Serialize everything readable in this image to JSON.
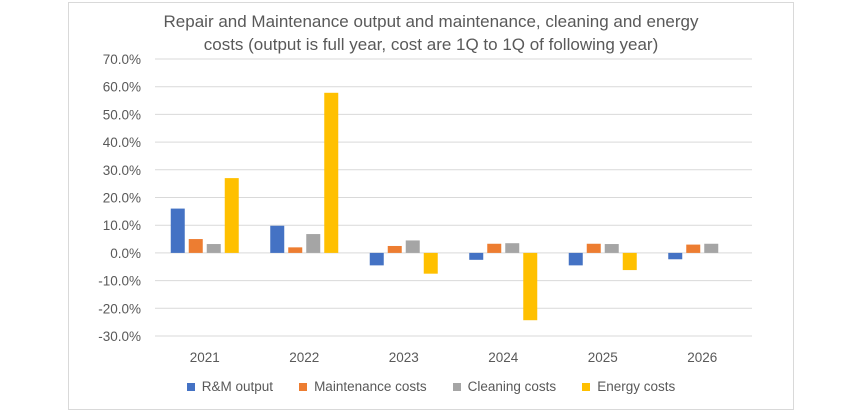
{
  "chart_data": {
    "type": "bar",
    "title_lines": [
      "Repair and Maintenance output and maintenance, cleaning and energy",
      "costs (output is full year, cost are 1Q to 1Q of following year)"
    ],
    "categories": [
      "2021",
      "2022",
      "2023",
      "2024",
      "2025",
      "2026"
    ],
    "series": [
      {
        "name": "R&M output",
        "color": "#4472C4",
        "values": [
          16.0,
          9.8,
          -4.5,
          -2.5,
          -4.5,
          -2.3
        ]
      },
      {
        "name": "Maintenance costs",
        "color": "#ED7D31",
        "values": [
          5.0,
          2.0,
          2.5,
          3.3,
          3.3,
          3.0
        ]
      },
      {
        "name": "Cleaning costs",
        "color": "#A5A5A5",
        "values": [
          3.2,
          6.8,
          4.5,
          3.5,
          3.2,
          3.3
        ]
      },
      {
        "name": "Energy costs",
        "color": "#FFC000",
        "values": [
          27.0,
          57.8,
          -7.5,
          -24.3,
          -6.2,
          0
        ]
      }
    ],
    "ylim": [
      -30,
      70
    ],
    "yticks": [
      "-30.0%",
      "-20.0%",
      "-10.0%",
      "0.0%",
      "10.0%",
      "20.0%",
      "30.0%",
      "40.0%",
      "50.0%",
      "60.0%",
      "70.0%"
    ],
    "xlabel": "",
    "ylabel": "",
    "grid": true,
    "legend_position": "bottom"
  }
}
